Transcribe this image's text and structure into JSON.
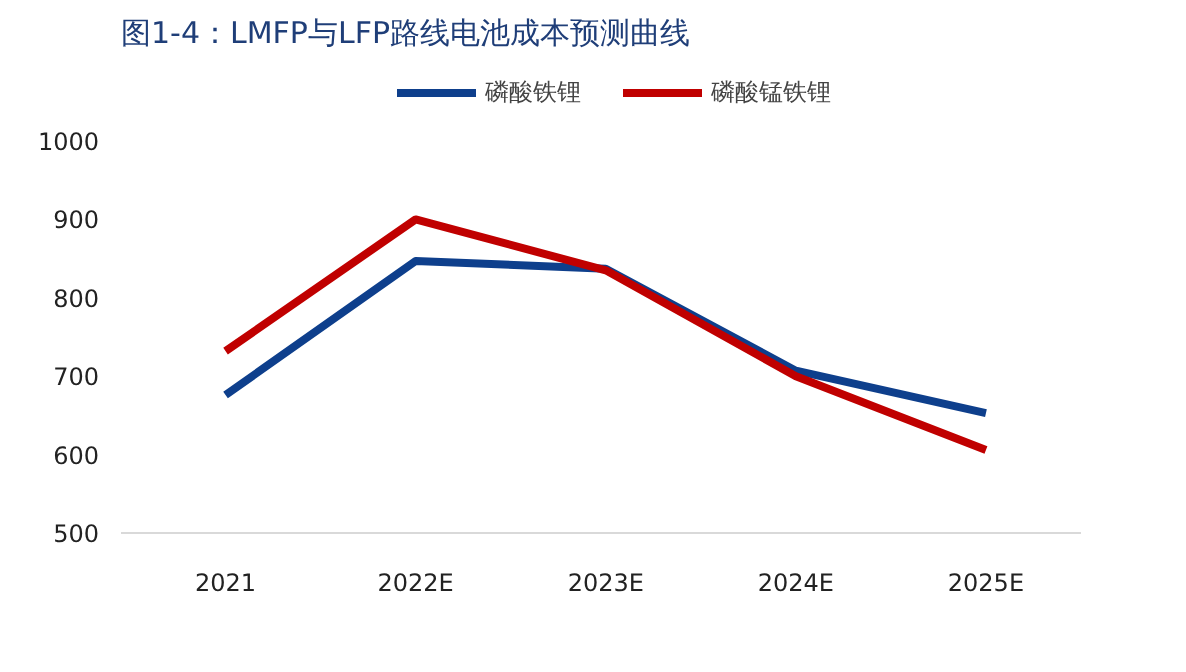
{
  "chart_data": {
    "type": "line",
    "title": "图1-4：LMFP与LFP路线电池成本预测曲线",
    "categories": [
      "2021",
      "2022E",
      "2023E",
      "2024E",
      "2025E"
    ],
    "series": [
      {
        "name": "磷酸铁锂",
        "color": "#0e3f8c",
        "values": [
          676,
          847,
          837,
          707,
          653
        ]
      },
      {
        "name": "磷酸锰铁锂",
        "color": "#c00000",
        "values": [
          732,
          900,
          835,
          700,
          606
        ]
      }
    ],
    "ylim": [
      500,
      1000
    ],
    "yticks": [
      500,
      600,
      700,
      800,
      900,
      1000
    ],
    "grid": false,
    "legend": "top",
    "line_style": "solid",
    "marker": "none"
  }
}
